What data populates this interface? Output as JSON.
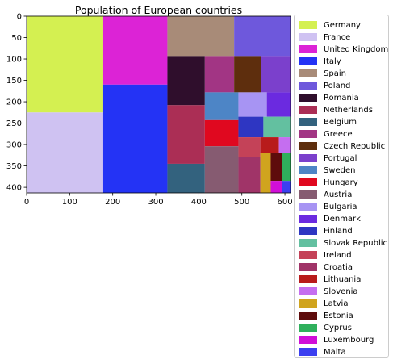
{
  "chart_data": {
    "type": "treemap",
    "title": "Population of European countries",
    "xlim": [
      0,
      613
    ],
    "ylim": [
      0,
      413
    ],
    "y_inverted": true,
    "xticks": [
      0,
      100,
      200,
      300,
      400,
      500,
      600
    ],
    "yticks": [
      0,
      50,
      100,
      150,
      200,
      250,
      300,
      350,
      400
    ],
    "legend_location": "outside right",
    "cells": [
      {
        "name": "Germany",
        "color": "#d4f051",
        "x0": 0,
        "y0": 0,
        "x1": 178,
        "y1": 225
      },
      {
        "name": "France",
        "color": "#cfc2f2",
        "x0": 0,
        "y0": 225,
        "x1": 178,
        "y1": 413
      },
      {
        "name": "United Kingdom",
        "color": "#dc23d6",
        "x0": 178,
        "y0": 0,
        "x1": 327,
        "y1": 160
      },
      {
        "name": "Italy",
        "color": "#2433f5",
        "x0": 178,
        "y0": 160,
        "x1": 327,
        "y1": 413
      },
      {
        "name": "Spain",
        "color": "#a88b78",
        "x0": 327,
        "y0": 0,
        "x1": 482,
        "y1": 95
      },
      {
        "name": "Poland",
        "color": "#6e58dc",
        "x0": 482,
        "y0": 0,
        "x1": 613,
        "y1": 95
      },
      {
        "name": "Romania",
        "color": "#2f0e2c",
        "x0": 327,
        "y0": 95,
        "x1": 414,
        "y1": 208
      },
      {
        "name": "Greece",
        "color": "#a23584",
        "x0": 414,
        "y0": 95,
        "x1": 482,
        "y1": 178
      },
      {
        "name": "Czech Republic",
        "color": "#5e2e0d",
        "x0": 482,
        "y0": 95,
        "x1": 545,
        "y1": 178
      },
      {
        "name": "Portugal",
        "color": "#7b40cc",
        "x0": 545,
        "y0": 95,
        "x1": 613,
        "y1": 178
      },
      {
        "name": "Netherlands",
        "color": "#ab2e55",
        "x0": 327,
        "y0": 208,
        "x1": 414,
        "y1": 345
      },
      {
        "name": "Belgium",
        "color": "#33627e",
        "x0": 327,
        "y0": 345,
        "x1": 414,
        "y1": 413
      },
      {
        "name": "Sweden",
        "color": "#4d85c6",
        "x0": 414,
        "y0": 178,
        "x1": 492,
        "y1": 243
      },
      {
        "name": "Hungary",
        "color": "#e0081f",
        "x0": 414,
        "y0": 243,
        "x1": 492,
        "y1": 304
      },
      {
        "name": "Austria",
        "color": "#865b71",
        "x0": 414,
        "y0": 304,
        "x1": 492,
        "y1": 413
      },
      {
        "name": "Bulgaria",
        "color": "#a794f3",
        "x0": 492,
        "y0": 178,
        "x1": 558,
        "y1": 235
      },
      {
        "name": "Denmark",
        "color": "#6b2ae0",
        "x0": 558,
        "y0": 178,
        "x1": 613,
        "y1": 235
      },
      {
        "name": "Finland",
        "color": "#2e36c2",
        "x0": 492,
        "y0": 235,
        "x1": 550,
        "y1": 283
      },
      {
        "name": "Slovak Republic",
        "color": "#63c0a0",
        "x0": 550,
        "y0": 235,
        "x1": 613,
        "y1": 283
      },
      {
        "name": "Ireland",
        "color": "#c44258",
        "x0": 492,
        "y0": 283,
        "x1": 543,
        "y1": 330
      },
      {
        "name": "Lithuania",
        "color": "#b81b1b",
        "x0": 543,
        "y0": 283,
        "x1": 586,
        "y1": 320
      },
      {
        "name": "Slovenia",
        "color": "#c56ef0",
        "x0": 586,
        "y0": 283,
        "x1": 613,
        "y1": 320
      },
      {
        "name": "Croatia",
        "color": "#a03468",
        "x0": 492,
        "y0": 330,
        "x1": 543,
        "y1": 413
      },
      {
        "name": "Latvia",
        "color": "#d0a41e",
        "x0": 543,
        "y0": 320,
        "x1": 567,
        "y1": 413
      },
      {
        "name": "Estonia",
        "color": "#5e0c0c",
        "x0": 567,
        "y0": 320,
        "x1": 594,
        "y1": 385
      },
      {
        "name": "Cyprus",
        "color": "#2fb05c",
        "x0": 594,
        "y0": 320,
        "x1": 613,
        "y1": 385
      },
      {
        "name": "Luxembourg",
        "color": "#d10ed8",
        "x0": 567,
        "y0": 385,
        "x1": 594,
        "y1": 413
      },
      {
        "name": "Malta",
        "color": "#3b3ff0",
        "x0": 594,
        "y0": 385,
        "x1": 613,
        "y1": 413
      }
    ],
    "legend": [
      {
        "label": "Germany",
        "color": "#d4f051"
      },
      {
        "label": "France",
        "color": "#cfc2f2"
      },
      {
        "label": "United Kingdom",
        "color": "#dc23d6"
      },
      {
        "label": "Italy",
        "color": "#2433f5"
      },
      {
        "label": "Spain",
        "color": "#a88b78"
      },
      {
        "label": "Poland",
        "color": "#6e58dc"
      },
      {
        "label": "Romania",
        "color": "#2f0e2c"
      },
      {
        "label": "Netherlands",
        "color": "#ab2e55"
      },
      {
        "label": "Belgium",
        "color": "#33627e"
      },
      {
        "label": "Greece",
        "color": "#a23584"
      },
      {
        "label": "Czech Republic",
        "color": "#5e2e0d"
      },
      {
        "label": "Portugal",
        "color": "#7b40cc"
      },
      {
        "label": "Sweden",
        "color": "#4d85c6"
      },
      {
        "label": "Hungary",
        "color": "#e0081f"
      },
      {
        "label": "Austria",
        "color": "#865b71"
      },
      {
        "label": "Bulgaria",
        "color": "#a794f3"
      },
      {
        "label": "Denmark",
        "color": "#6b2ae0"
      },
      {
        "label": "Finland",
        "color": "#2e36c2"
      },
      {
        "label": "Slovak Republic",
        "color": "#63c0a0"
      },
      {
        "label": "Ireland",
        "color": "#c44258"
      },
      {
        "label": "Croatia",
        "color": "#a03468"
      },
      {
        "label": "Lithuania",
        "color": "#b81b1b"
      },
      {
        "label": "Slovenia",
        "color": "#c56ef0"
      },
      {
        "label": "Latvia",
        "color": "#d0a41e"
      },
      {
        "label": "Estonia",
        "color": "#5e0c0c"
      },
      {
        "label": "Cyprus",
        "color": "#2fb05c"
      },
      {
        "label": "Luxembourg",
        "color": "#d10ed8"
      },
      {
        "label": "Malta",
        "color": "#3b3ff0"
      }
    ]
  }
}
